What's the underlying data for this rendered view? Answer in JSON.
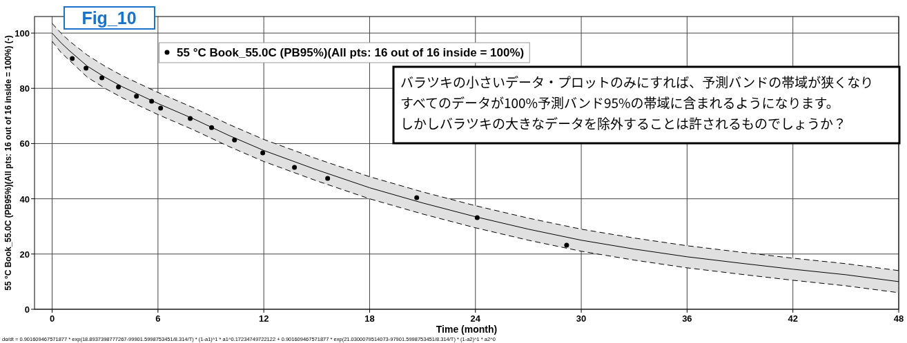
{
  "chart_data": {
    "type": "scatter",
    "xlabel": "Time (month)",
    "ylabel": "55 °C Book_55.0C (PB95%)(All pts: 16 out of 16 inside = 100%) (-)",
    "xlim": [
      -1,
      48
    ],
    "xticks": [
      0,
      6,
      12,
      18,
      24,
      30,
      36,
      42,
      48
    ],
    "ylim": [
      0,
      106
    ],
    "yticks": [
      0,
      20,
      40,
      60,
      80,
      100
    ],
    "grid": true,
    "legend": "top",
    "marker": "circle",
    "series": [
      {
        "name": "55 °C Book_55.0C (PB95%)(All pts: 16 out of 16 inside = 100%)",
        "color": "#000000",
        "x": [
          1.14,
          1.92,
          2.82,
          3.76,
          4.78,
          5.64,
          6.15,
          7.83,
          9.04,
          10.34,
          11.94,
          13.74,
          15.62,
          20.67,
          24.1,
          29.17
        ],
        "values": [
          90.8,
          87.3,
          83.8,
          80.5,
          77.1,
          75.3,
          72.8,
          69.1,
          65.8,
          61.3,
          56.6,
          51.4,
          47.4,
          40.4,
          33.2,
          23.2
        ]
      },
      {
        "type": "line",
        "color": "#000000",
        "line_style": "solid",
        "marker": "none",
        "x": [
          0,
          0.5,
          1,
          2,
          3,
          4,
          6,
          8,
          10,
          12,
          15,
          18,
          21,
          24,
          27,
          30,
          33,
          36,
          39,
          42,
          45,
          48
        ],
        "values": [
          100,
          96.5,
          93.5,
          88,
          84,
          80.5,
          74.5,
          69,
          63,
          57.5,
          50.5,
          44,
          38.5,
          33.5,
          29,
          25,
          21.8,
          19,
          16.7,
          14.5,
          12.5,
          10
        ],
        "lower": [
          97,
          93,
          90,
          84,
          80,
          76.5,
          70.5,
          65,
          59,
          53.5,
          46.5,
          40,
          34.5,
          29.5,
          25,
          21,
          17.8,
          15,
          12.7,
          10.5,
          8.5,
          6
        ],
        "upper": [
          103.5,
          100,
          97,
          92,
          88,
          84.5,
          78.5,
          73,
          67,
          61.5,
          54.5,
          48,
          42.5,
          37.5,
          33,
          29,
          25.8,
          23,
          20.7,
          18.5,
          16.5,
          14
        ]
      },
      {
        "type": "line",
        "color": "#000000",
        "line_style": "dashed",
        "marker": "none",
        "x": [
          0,
          0.5,
          1,
          2,
          3,
          4,
          6,
          8,
          10,
          12,
          15,
          18,
          21,
          24,
          27,
          30,
          33,
          36,
          39,
          42,
          45,
          48
        ],
        "values": [
          103.5,
          100,
          97,
          92,
          88,
          84.5,
          78.5,
          73,
          67,
          61.5,
          54.5,
          48,
          42.5,
          37.5,
          33,
          29,
          25.8,
          23,
          20.7,
          18.5,
          16.5,
          14
        ]
      },
      {
        "type": "line",
        "color": "#000000",
        "line_style": "dashed",
        "marker": "none",
        "x": [
          0,
          0.5,
          1,
          2,
          3,
          4,
          6,
          8,
          10,
          12,
          15,
          18,
          21,
          24,
          27,
          30,
          33,
          36,
          39,
          42,
          45,
          48
        ],
        "values": [
          97,
          93,
          90,
          84,
          80,
          76.5,
          70.5,
          65,
          59,
          53.5,
          46.5,
          40,
          34.5,
          29.5,
          25,
          21,
          17.8,
          15,
          12.7,
          10.5,
          8.5,
          6
        ]
      }
    ],
    "annotations": [
      "Fig_10",
      "バラツキの小さいデータ・プロットのみにすれば、予測バンドの帯域が狭くなり",
      "すべてのデータが100%予測バンド95%の帯域に含まれるようになります。",
      "しかしバラツキの大きなデータを除外することは許されるものでしょうか？",
      "dα/dt = 0.901609467571877 * exp(18.8937398777267-99901.5998753451/8.314/T) * (1-a1)^1 * a1^0.17234749722122 + 0.901609467571877 * exp(21.0300079514073-97901.5998753451/8.314/T) * (1-a2)^1 * a2^0"
    ]
  }
}
